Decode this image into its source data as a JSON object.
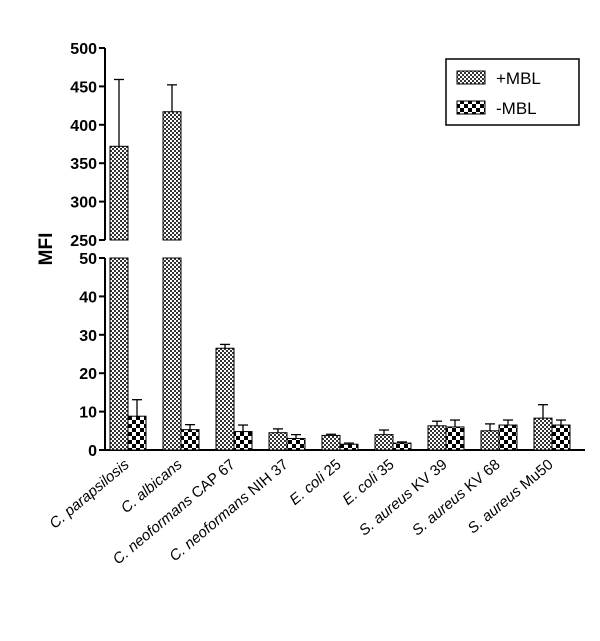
{
  "chart_data": {
    "type": "bar",
    "ylabel": "MFI",
    "xlabel": "",
    "title": "",
    "categories": [
      "C. parapsilosis",
      "C. albicans",
      "C. neoformans CAP 67",
      "C. neoformans NIH 37",
      "E. coli 25",
      "E. coli 35",
      "S. aureus KV 39",
      "S. aureus KV 68",
      "S. aureus Mu50"
    ],
    "series": [
      {
        "name": "+MBL",
        "pattern": "fine-checker",
        "values": [
          372,
          417,
          26.5,
          4.5,
          3.8,
          4.0,
          6.3,
          5.0,
          8.3
        ],
        "errors": [
          87,
          35,
          1.0,
          1.0,
          0.3,
          1.2,
          1.2,
          1.8,
          3.5
        ]
      },
      {
        "name": "-MBL",
        "pattern": "coarse-checker",
        "values": [
          8.8,
          5.3,
          4.8,
          3.0,
          1.5,
          1.8,
          6.0,
          6.5,
          6.5
        ],
        "errors": [
          4.3,
          1.3,
          1.7,
          1.0,
          0.3,
          0.3,
          1.8,
          1.3,
          1.3
        ]
      }
    ],
    "y_axis_broken": true,
    "y_segments": [
      {
        "range": [
          0,
          50
        ],
        "ticks": [
          0,
          10,
          20,
          30,
          40,
          50
        ]
      },
      {
        "range": [
          250,
          500
        ],
        "ticks": [
          250,
          300,
          350,
          400,
          450,
          500
        ]
      }
    ],
    "legend_position": "top-right",
    "grid": false
  }
}
